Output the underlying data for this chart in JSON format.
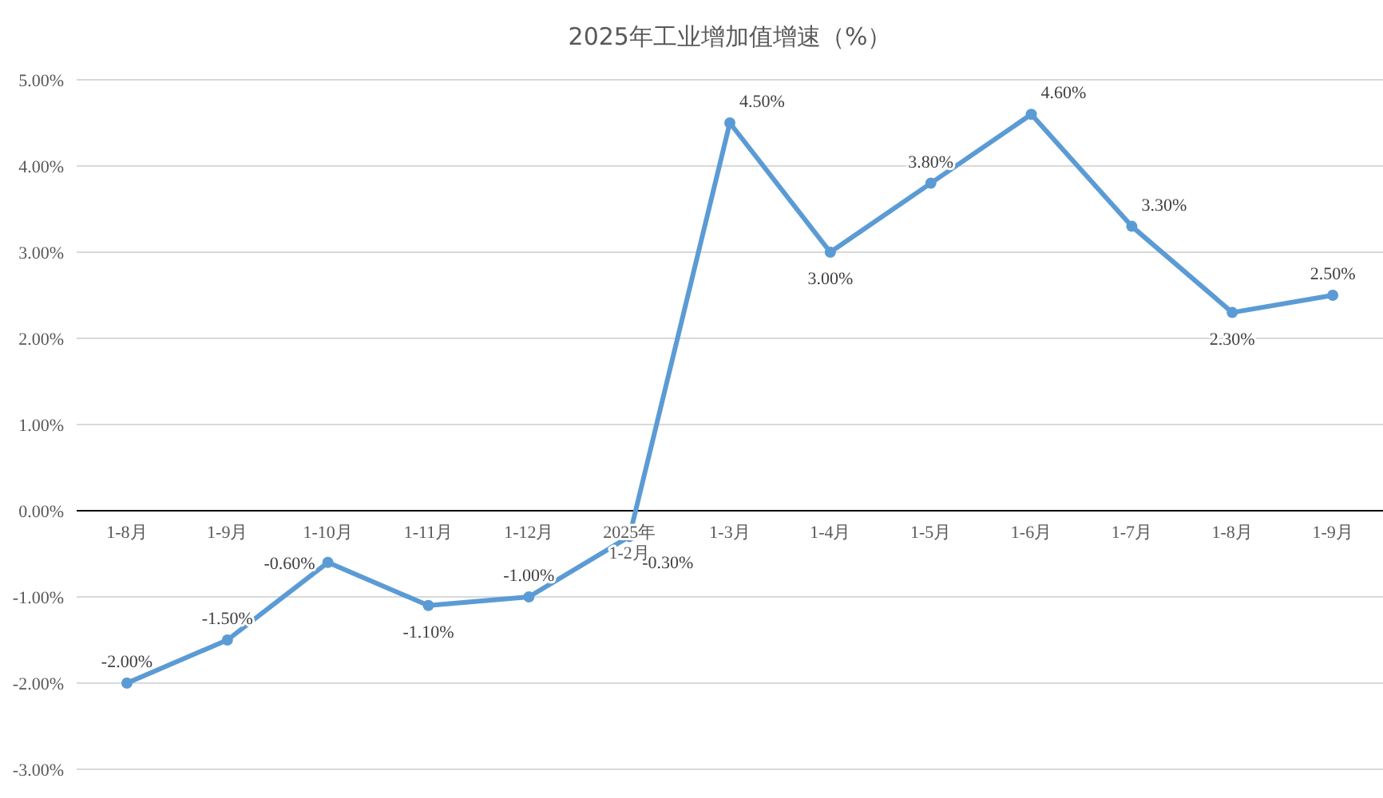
{
  "chart_data": {
    "type": "line",
    "title": "2025年工业增加值增速（%）",
    "categories": [
      "1-8月",
      "1-9月",
      "1-10月",
      "1-11月",
      "1-12月",
      "2025年1-2月",
      "1-3月",
      "1-4月",
      "1-5月",
      "1-6月",
      "1-7月",
      "1-8月",
      "1-9月"
    ],
    "series": [
      {
        "color": "#5b9bd5",
        "values": [
          -2.0,
          -1.5,
          -0.6,
          -1.1,
          -1.0,
          -0.3,
          4.5,
          3.0,
          3.8,
          4.6,
          3.3,
          2.3,
          2.5
        ],
        "value_labels": [
          "-2.00%",
          "-1.50%",
          "-0.60%",
          "-1.10%",
          "-1.00%",
          "-0.30%",
          "4.50%",
          "3.00%",
          "3.80%",
          "4.60%",
          "3.30%",
          "2.30%",
          "2.50%"
        ]
      }
    ],
    "ylim": [
      -3,
      5
    ],
    "yticks": [
      {
        "value": -3,
        "label": "-3.00%"
      },
      {
        "value": -2,
        "label": "-2.00%"
      },
      {
        "value": -1,
        "label": "-1.00%"
      },
      {
        "value": 0,
        "label": "0.00%"
      },
      {
        "value": 1,
        "label": "1.00%"
      },
      {
        "value": 2,
        "label": "2.00%"
      },
      {
        "value": 3,
        "label": "3.00%"
      },
      {
        "value": 4,
        "label": "4.00%"
      },
      {
        "value": 5,
        "label": "5.00%"
      }
    ],
    "grid": "y",
    "marker": "circle",
    "line_style": "solid"
  }
}
